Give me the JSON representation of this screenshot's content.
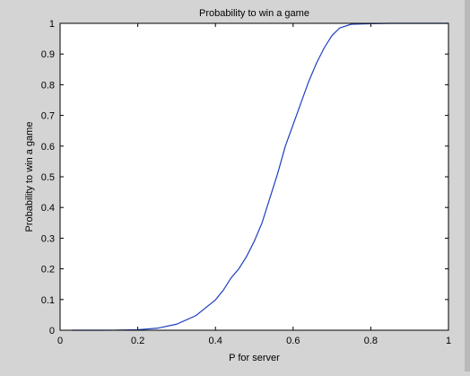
{
  "chart_data": {
    "type": "line",
    "title": "Probability to win a game",
    "xlabel": "P for server",
    "ylabel": "Probability to win a game",
    "xlim": [
      0,
      1
    ],
    "ylim": [
      0,
      1
    ],
    "xticks": [
      0,
      0.2,
      0.4,
      0.6,
      0.8,
      1
    ],
    "xtick_labels": [
      "0",
      "0.2",
      "0.4",
      "0.6",
      "0.8",
      "1"
    ],
    "yticks": [
      0,
      0.1,
      0.2,
      0.3,
      0.4,
      0.5,
      0.6,
      0.7,
      0.8,
      0.9,
      1
    ],
    "ytick_labels": [
      "0",
      "0.1",
      "0.2",
      "0.3",
      "0.4",
      "0.5",
      "0.6",
      "0.7",
      "0.8",
      "0.9",
      "1"
    ],
    "grid": false,
    "line_color": "#1f3fbf",
    "series": [
      {
        "x": [
          0.03,
          0.05,
          0.1,
          0.15,
          0.2,
          0.25,
          0.3,
          0.35,
          0.4,
          0.42,
          0.44,
          0.46,
          0.48,
          0.5,
          0.52,
          0.54,
          0.56,
          0.58,
          0.6,
          0.62,
          0.64,
          0.66,
          0.68,
          0.7,
          0.72,
          0.75,
          0.8,
          0.85,
          0.9,
          0.95,
          1.0
        ],
        "y": [
          0.0,
          0.0,
          0.0,
          0.0003,
          0.0016,
          0.0065,
          0.0197,
          0.0479,
          0.0989,
          0.13,
          0.17,
          0.2,
          0.24,
          0.29,
          0.35,
          0.43,
          0.51,
          0.6,
          0.67,
          0.74,
          0.81,
          0.87,
          0.92,
          0.96,
          0.985,
          0.997,
          0.999,
          1.0,
          1.0,
          1.0,
          1.0
        ]
      }
    ]
  }
}
